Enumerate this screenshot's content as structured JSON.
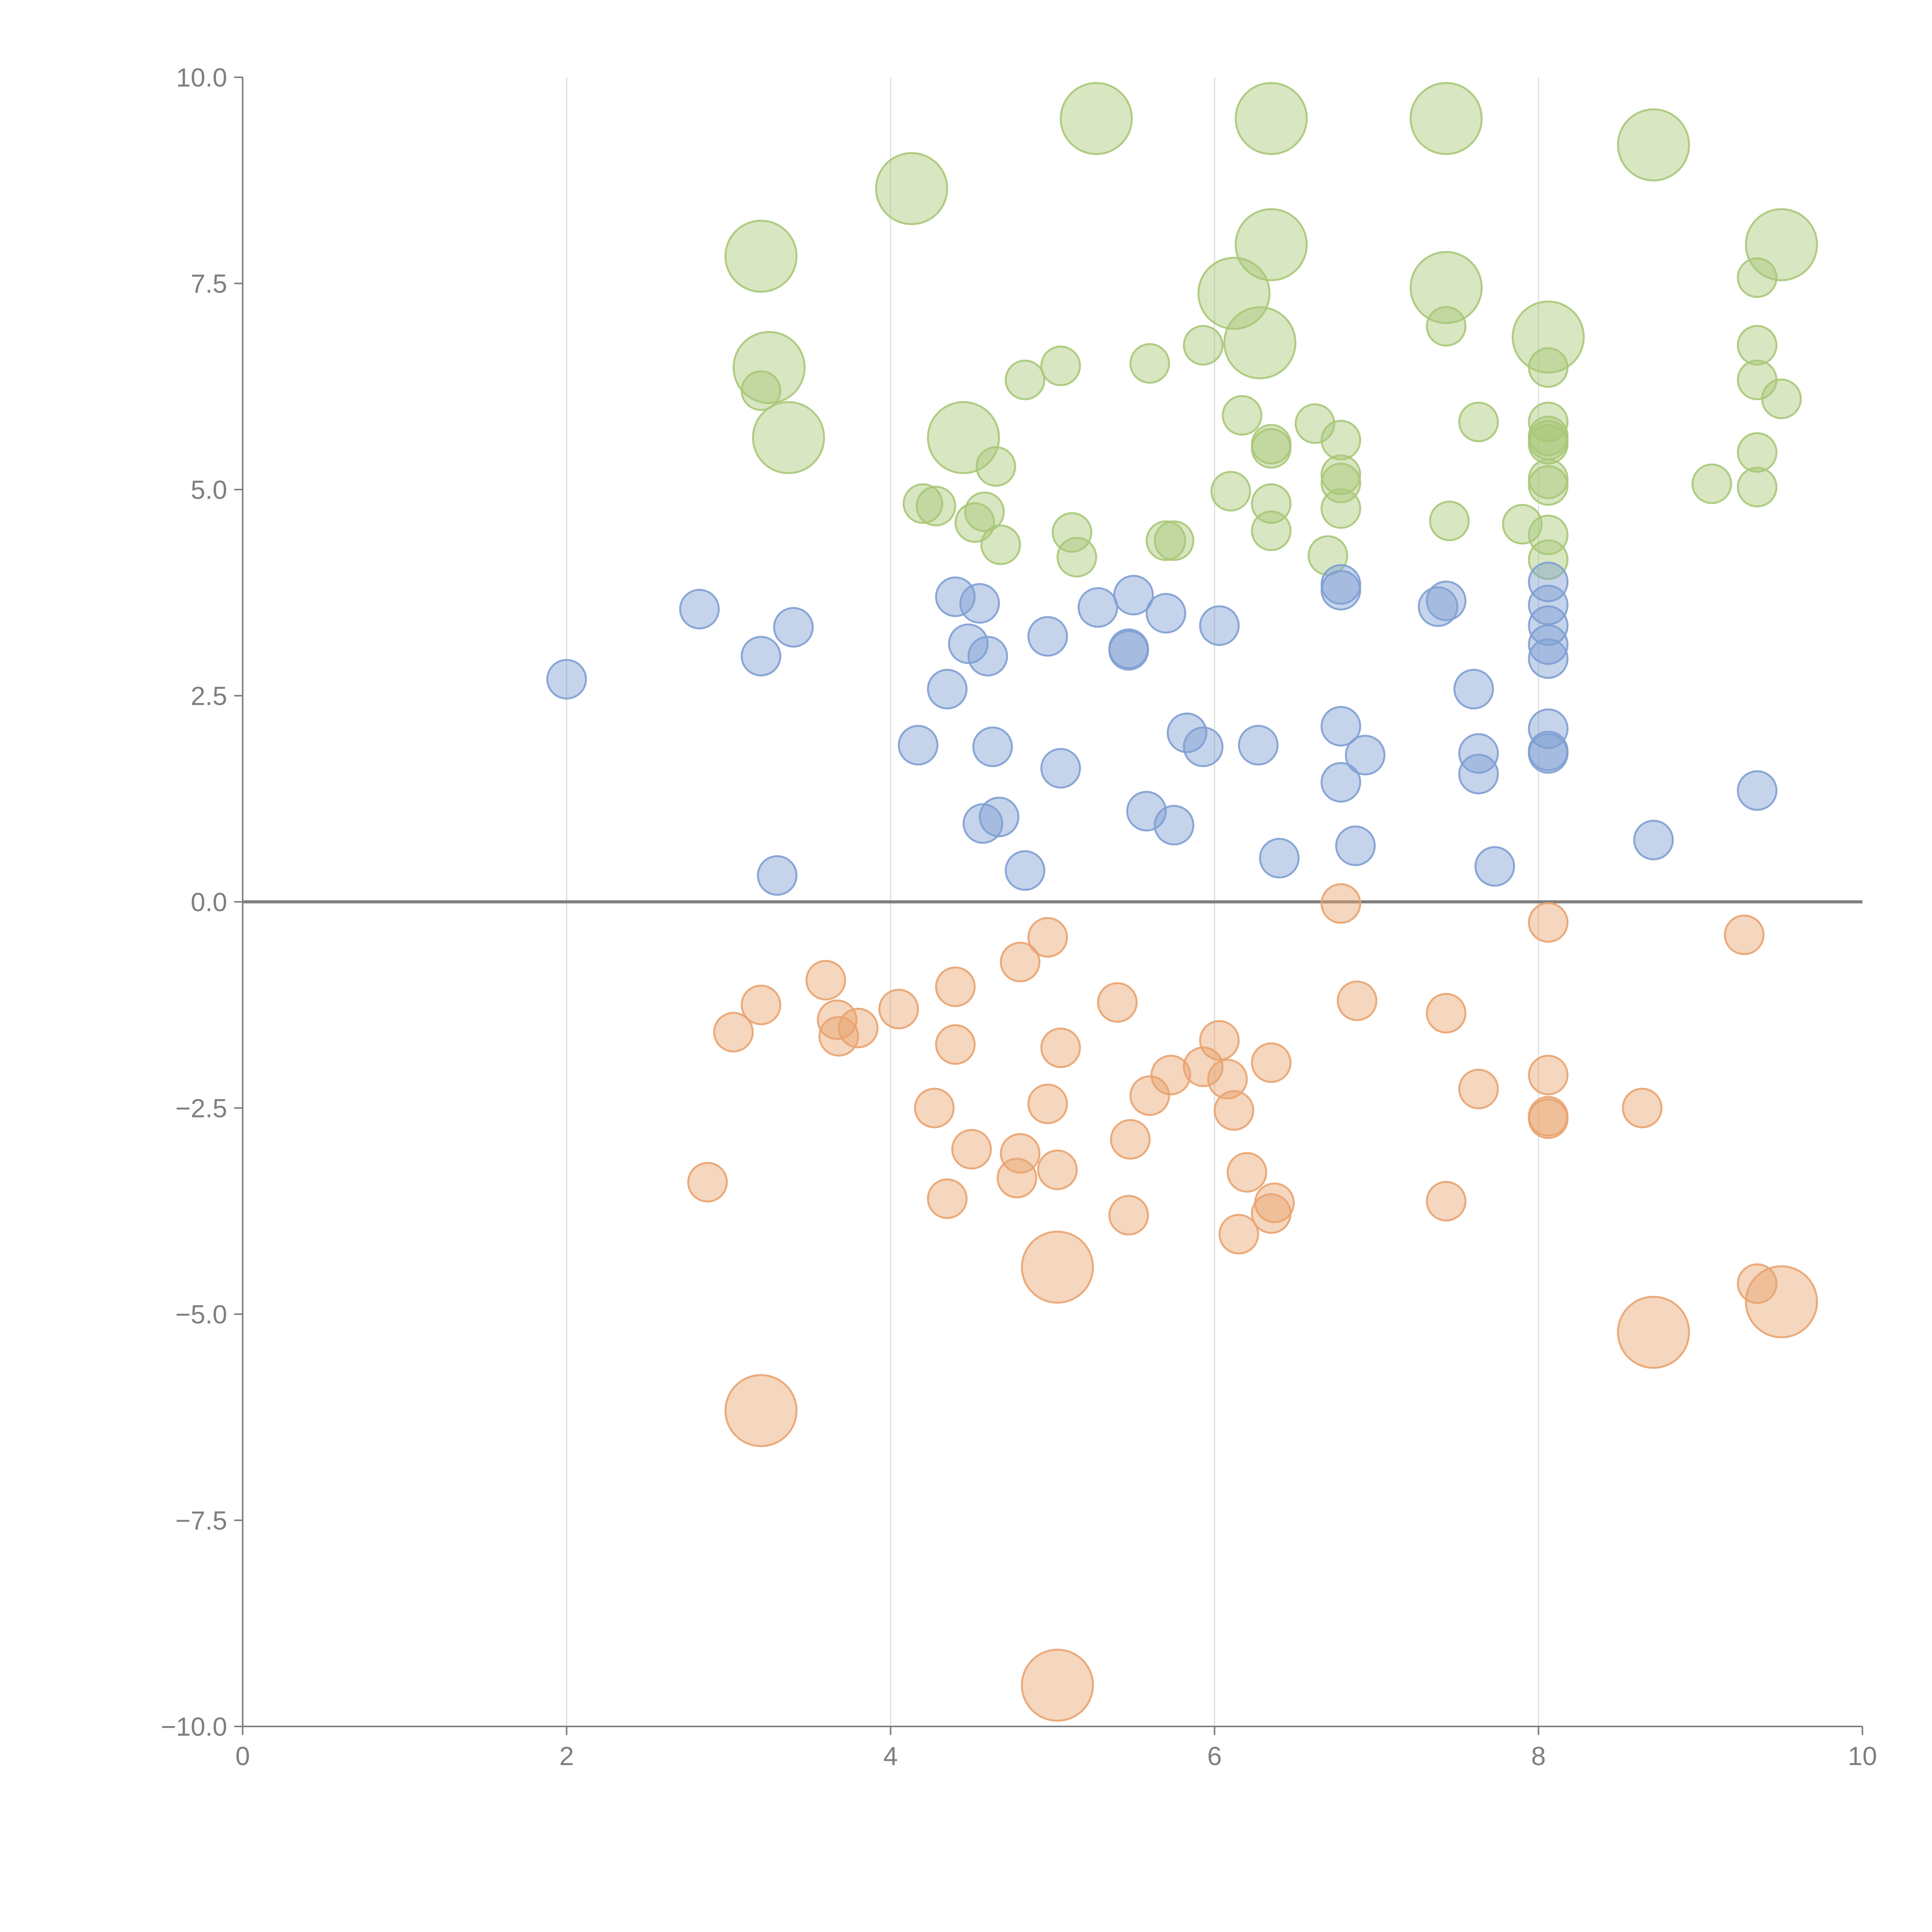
{
  "chart_data": {
    "type": "scatter",
    "title": "",
    "xlabel": "",
    "ylabel": "",
    "xlim": [
      0,
      10
    ],
    "ylim": [
      -10,
      10
    ],
    "x_ticks": [
      "0",
      "2",
      "4",
      "6",
      "8",
      "10"
    ],
    "y_ticks": [
      "10.0",
      "7.5",
      "5.0",
      "2.5",
      "0.0",
      "−2.5",
      "−5.0",
      "−7.5",
      "−10.0"
    ],
    "grid": "vertical",
    "zero_line": true,
    "colors": {
      "green": "#a9c878",
      "blue": "#7f9fd3",
      "orange": "#e9a36f",
      "axis": "#7f7f7f",
      "grid": "#dddddd"
    },
    "series": [
      {
        "name": "green",
        "color": "#a9c878",
        "points": [
          [
            5.27,
            9.5,
            3
          ],
          [
            6.35,
            9.5,
            3
          ],
          [
            7.43,
            9.5,
            3
          ],
          [
            8.71,
            9.18,
            3
          ],
          [
            4.13,
            8.65,
            3
          ],
          [
            3.2,
            7.83,
            3
          ],
          [
            6.35,
            7.97,
            3
          ],
          [
            9.5,
            7.97,
            3
          ],
          [
            7.43,
            7.45,
            3
          ],
          [
            6.12,
            7.38,
            3
          ],
          [
            9.35,
            7.57,
            1
          ],
          [
            7.43,
            6.98,
            1
          ],
          [
            3.25,
            6.48,
            3
          ],
          [
            6.28,
            6.78,
            3
          ],
          [
            8.06,
            6.85,
            3
          ],
          [
            3.2,
            6.2,
            1
          ],
          [
            4.83,
            6.33,
            1
          ],
          [
            5.05,
            6.5,
            1
          ],
          [
            5.6,
            6.53,
            1
          ],
          [
            5.93,
            6.75,
            1
          ],
          [
            9.35,
            6.75,
            1
          ],
          [
            9.35,
            6.33,
            1
          ],
          [
            9.5,
            6.1,
            1
          ],
          [
            8.06,
            6.48,
            1
          ],
          [
            3.37,
            5.63,
            3
          ],
          [
            4.45,
            5.63,
            3
          ],
          [
            6.17,
            5.9,
            1
          ],
          [
            6.62,
            5.8,
            1
          ],
          [
            6.35,
            5.5,
            1
          ],
          [
            6.35,
            5.55,
            1
          ],
          [
            6.78,
            5.6,
            1
          ],
          [
            7.63,
            5.82,
            1
          ],
          [
            8.06,
            5.82,
            1
          ],
          [
            8.06,
            5.6,
            1
          ],
          [
            8.06,
            5.55,
            1
          ],
          [
            8.06,
            5.65,
            1
          ],
          [
            9.35,
            5.45,
            1
          ],
          [
            4.65,
            5.28,
            1
          ],
          [
            6.78,
            5.18,
            1
          ],
          [
            6.78,
            5.08,
            1
          ],
          [
            8.06,
            5.13,
            1
          ],
          [
            8.06,
            5.05,
            1
          ],
          [
            9.07,
            5.07,
            1
          ],
          [
            9.35,
            5.03,
            1
          ],
          [
            6.1,
            4.98,
            1
          ],
          [
            4.2,
            4.83,
            1
          ],
          [
            4.28,
            4.8,
            1
          ],
          [
            4.58,
            4.73,
            1
          ],
          [
            4.52,
            4.6,
            1
          ],
          [
            6.35,
            4.83,
            1
          ],
          [
            6.78,
            4.77,
            1
          ],
          [
            7.45,
            4.62,
            1
          ],
          [
            7.9,
            4.58,
            1
          ],
          [
            5.12,
            4.48,
            1
          ],
          [
            6.35,
            4.5,
            1
          ],
          [
            8.06,
            4.45,
            1
          ],
          [
            4.68,
            4.33,
            1
          ],
          [
            5.7,
            4.38,
            1
          ],
          [
            5.75,
            4.38,
            1
          ],
          [
            5.15,
            4.18,
            1
          ],
          [
            6.7,
            4.2,
            1
          ],
          [
            8.06,
            4.15,
            1
          ]
        ]
      },
      {
        "name": "blue",
        "color": "#7f9fd3",
        "points": [
          [
            2.0,
            2.7,
            1
          ],
          [
            2.82,
            3.55,
            1
          ],
          [
            3.2,
            2.98,
            1
          ],
          [
            3.4,
            3.33,
            1
          ],
          [
            4.4,
            3.7,
            1
          ],
          [
            4.55,
            3.62,
            1
          ],
          [
            4.48,
            3.13,
            1
          ],
          [
            4.6,
            2.98,
            1
          ],
          [
            4.97,
            3.22,
            1
          ],
          [
            5.28,
            3.57,
            1
          ],
          [
            5.5,
            3.72,
            1
          ],
          [
            5.7,
            3.5,
            1
          ],
          [
            6.03,
            3.35,
            1
          ],
          [
            5.47,
            3.05,
            1
          ],
          [
            5.47,
            3.07,
            1
          ],
          [
            4.35,
            2.58,
            1
          ],
          [
            6.78,
            3.85,
            1
          ],
          [
            6.78,
            3.78,
            1
          ],
          [
            7.43,
            3.65,
            1
          ],
          [
            7.38,
            3.58,
            1
          ],
          [
            8.06,
            3.88,
            1
          ],
          [
            8.06,
            3.6,
            1
          ],
          [
            8.06,
            3.35,
            1
          ],
          [
            8.06,
            3.12,
            1
          ],
          [
            8.06,
            2.95,
            1
          ],
          [
            7.6,
            2.58,
            1
          ],
          [
            4.17,
            1.9,
            1
          ],
          [
            4.63,
            1.88,
            1
          ],
          [
            5.05,
            1.62,
            1
          ],
          [
            5.83,
            2.05,
            1
          ],
          [
            5.93,
            1.88,
            1
          ],
          [
            6.27,
            1.9,
            1
          ],
          [
            6.78,
            2.13,
            1
          ],
          [
            6.93,
            1.78,
            1
          ],
          [
            7.63,
            1.8,
            1
          ],
          [
            8.06,
            2.1,
            1
          ],
          [
            8.06,
            1.8,
            1
          ],
          [
            8.06,
            1.83,
            1
          ],
          [
            6.78,
            1.45,
            1
          ],
          [
            7.63,
            1.55,
            1
          ],
          [
            9.35,
            1.35,
            1
          ],
          [
            4.67,
            1.03,
            1
          ],
          [
            4.57,
            0.95,
            1
          ],
          [
            5.58,
            1.1,
            1
          ],
          [
            5.75,
            0.93,
            1
          ],
          [
            4.83,
            0.38,
            1
          ],
          [
            3.3,
            0.32,
            1
          ],
          [
            6.4,
            0.53,
            1
          ],
          [
            6.87,
            0.68,
            1
          ],
          [
            7.73,
            0.43,
            1
          ],
          [
            8.71,
            0.75,
            1
          ]
        ]
      },
      {
        "name": "orange",
        "color": "#e9a36f",
        "points": [
          [
            6.78,
            -0.02,
            1
          ],
          [
            8.06,
            -0.25,
            1
          ],
          [
            9.27,
            -0.4,
            1
          ],
          [
            4.97,
            -0.43,
            1
          ],
          [
            4.8,
            -0.73,
            1
          ],
          [
            3.6,
            -0.95,
            1
          ],
          [
            4.4,
            -1.03,
            1
          ],
          [
            3.2,
            -1.25,
            1
          ],
          [
            4.05,
            -1.3,
            1
          ],
          [
            5.4,
            -1.22,
            1
          ],
          [
            6.88,
            -1.2,
            1
          ],
          [
            7.43,
            -1.35,
            1
          ],
          [
            3.03,
            -1.58,
            1
          ],
          [
            3.67,
            -1.43,
            1
          ],
          [
            3.8,
            -1.53,
            1
          ],
          [
            3.68,
            -1.63,
            1
          ],
          [
            4.4,
            -1.73,
            1
          ],
          [
            5.05,
            -1.77,
            1
          ],
          [
            6.03,
            -1.68,
            1
          ],
          [
            6.35,
            -1.95,
            1
          ],
          [
            5.93,
            -2.0,
            1
          ],
          [
            5.73,
            -2.1,
            1
          ],
          [
            6.08,
            -2.15,
            1
          ],
          [
            8.06,
            -2.1,
            1
          ],
          [
            7.63,
            -2.27,
            1
          ],
          [
            5.6,
            -2.35,
            1
          ],
          [
            4.27,
            -2.5,
            1
          ],
          [
            4.97,
            -2.45,
            1
          ],
          [
            6.12,
            -2.53,
            1
          ],
          [
            8.64,
            -2.5,
            1
          ],
          [
            8.06,
            -2.6,
            1
          ],
          [
            8.06,
            -2.63,
            1
          ],
          [
            5.48,
            -2.88,
            1
          ],
          [
            4.5,
            -3.0,
            1
          ],
          [
            4.8,
            -3.05,
            1
          ],
          [
            5.03,
            -3.25,
            1
          ],
          [
            4.78,
            -3.35,
            1
          ],
          [
            6.2,
            -3.28,
            1
          ],
          [
            2.87,
            -3.4,
            1
          ],
          [
            4.35,
            -3.6,
            1
          ],
          [
            6.37,
            -3.65,
            1
          ],
          [
            6.35,
            -3.78,
            1
          ],
          [
            7.43,
            -3.63,
            1
          ],
          [
            5.47,
            -3.8,
            1
          ],
          [
            6.15,
            -4.03,
            1
          ],
          [
            5.03,
            -4.43,
            3
          ],
          [
            9.35,
            -4.63,
            1
          ],
          [
            9.5,
            -4.85,
            3
          ],
          [
            8.71,
            -5.22,
            3
          ],
          [
            3.2,
            -6.17,
            3
          ],
          [
            5.03,
            -9.5,
            3
          ]
        ]
      }
    ]
  }
}
